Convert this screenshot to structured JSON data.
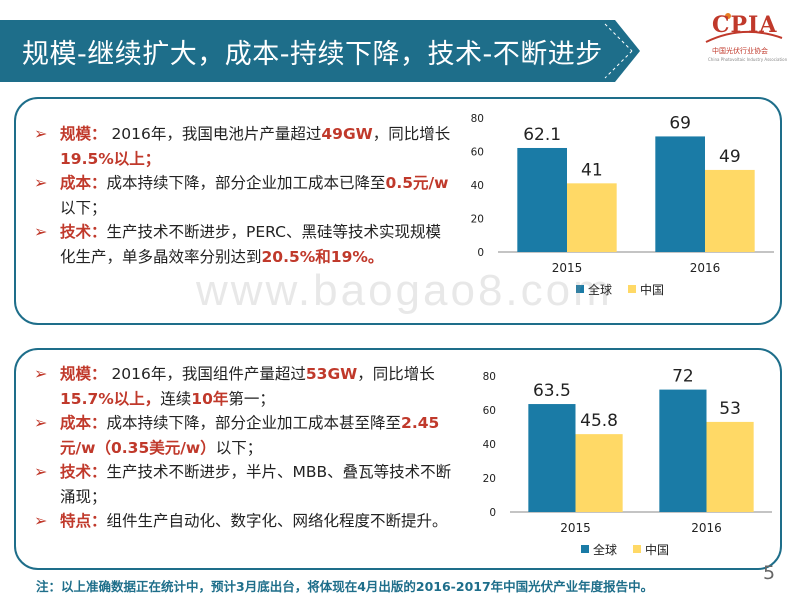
{
  "title": "规模-继续扩大，成本-持续下降，技术-不断进步",
  "logo": {
    "abbr": "CPIA",
    "cn_name": "中国光伏行业协会",
    "en_name": "China Photovoltaic Industry Association"
  },
  "colors": {
    "banner": "#1e6e8a",
    "accent_red": "#c0392b",
    "series_global": "#1a7ba6",
    "series_china": "#ffd966"
  },
  "panel_cells": {
    "bullets": [
      {
        "key": "规模：",
        "runs": [
          {
            "t": " 2016年，我国电池片产量超过",
            "hl": false
          },
          {
            "t": "49GW",
            "hl": true
          },
          {
            "t": "，同比增长",
            "hl": false
          },
          {
            "t": "19.5%以上；",
            "hl": true
          }
        ]
      },
      {
        "key": "成本：",
        "runs": [
          {
            "t": "成本持续下降，部分企业加工成本已降至",
            "hl": false
          },
          {
            "t": "0.5元/w",
            "hl": true
          },
          {
            "t": "以下；",
            "hl": false
          }
        ]
      },
      {
        "key": "技术：",
        "runs": [
          {
            "t": "生产技术不断进步，PERC、黑硅等技术实现规模化生产，单多晶效率分别达到",
            "hl": false
          },
          {
            "t": "20.5%和19%。",
            "hl": true
          }
        ]
      }
    ]
  },
  "panel_modules": {
    "bullets": [
      {
        "key": "规模：",
        "runs": [
          {
            "t": " 2016年，我国组件产量超过",
            "hl": false
          },
          {
            "t": "53GW",
            "hl": true
          },
          {
            "t": "，同比增长",
            "hl": false
          },
          {
            "t": "15.7%以上，",
            "hl": true
          },
          {
            "t": "连续",
            "hl": false
          },
          {
            "t": "10年",
            "hl": true
          },
          {
            "t": "第一；",
            "hl": false
          }
        ]
      },
      {
        "key": "成本：",
        "runs": [
          {
            "t": "成本持续下降，部分企业加工成本甚至降至",
            "hl": false
          },
          {
            "t": "2.45元/w（0.35美元/w）",
            "hl": true
          },
          {
            "t": "以下；",
            "hl": false
          }
        ]
      },
      {
        "key": "技术：",
        "runs": [
          {
            "t": "生产技术不断进步，半片、MBB、叠瓦等技术不断涌现；",
            "hl": false
          }
        ]
      },
      {
        "key": "特点：",
        "runs": [
          {
            "t": "组件生产自动化、数字化、网络化程度不断提升。",
            "hl": false
          }
        ]
      }
    ]
  },
  "chart_data": [
    {
      "type": "bar",
      "categories": [
        "2015",
        "2016"
      ],
      "series": [
        {
          "name": "全球",
          "values": [
            62.1,
            69
          ]
        },
        {
          "name": "中国",
          "values": [
            41,
            49
          ]
        }
      ],
      "title": "",
      "xlabel": "",
      "ylabel": "",
      "ylim": [
        0,
        80
      ],
      "yticks": [
        0,
        20,
        40,
        60,
        80
      ],
      "grid": false,
      "legend": "bottom"
    },
    {
      "type": "bar",
      "categories": [
        "2015",
        "2016"
      ],
      "series": [
        {
          "name": "全球",
          "values": [
            63.5,
            72
          ]
        },
        {
          "name": "中国",
          "values": [
            45.8,
            53
          ]
        }
      ],
      "title": "",
      "xlabel": "",
      "ylabel": "",
      "ylim": [
        0,
        80
      ],
      "yticks": [
        0,
        20,
        40,
        60,
        80
      ],
      "grid": false,
      "legend": "bottom"
    }
  ],
  "footnote": "注：以上准确数据正在统计中，预计3月底出台，将体现在4月出版的2016-2017年中国光伏产业年度报告中。",
  "page_number": "5",
  "watermark": "www.baogao8.com"
}
